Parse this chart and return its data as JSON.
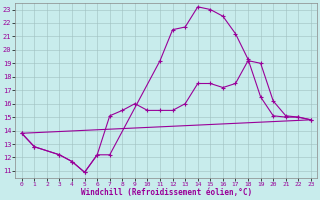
{
  "xlabel": "Windchill (Refroidissement éolien,°C)",
  "bg_color": "#c8ecec",
  "line_color": "#990099",
  "xlim": [
    -0.5,
    23.5
  ],
  "ylim": [
    10.5,
    23.5
  ],
  "xticks": [
    0,
    1,
    2,
    3,
    4,
    5,
    6,
    7,
    8,
    9,
    10,
    11,
    12,
    13,
    14,
    15,
    16,
    17,
    18,
    19,
    20,
    21,
    22,
    23
  ],
  "yticks": [
    11,
    12,
    13,
    14,
    15,
    16,
    17,
    18,
    19,
    20,
    21,
    22,
    23
  ],
  "line1_x": [
    0,
    1,
    3,
    4,
    5,
    6,
    7,
    8,
    9,
    10,
    11,
    12,
    13,
    14,
    15,
    16,
    17,
    18,
    19,
    20,
    21,
    22,
    23
  ],
  "line1_y": [
    13.8,
    12.8,
    12.2,
    11.7,
    10.9,
    12.2,
    15.1,
    15.5,
    16.0,
    15.5,
    15.5,
    15.5,
    16.0,
    17.5,
    17.5,
    17.2,
    17.5,
    19.2,
    19.0,
    16.2,
    15.1,
    15.0,
    14.8
  ],
  "line2_x": [
    0,
    1,
    3,
    4,
    5,
    6,
    7,
    11,
    12,
    13,
    14,
    15,
    16,
    17,
    18,
    19,
    20,
    21,
    22,
    23
  ],
  "line2_y": [
    13.8,
    12.8,
    12.2,
    11.7,
    10.9,
    12.2,
    12.2,
    19.2,
    21.5,
    21.7,
    23.2,
    23.0,
    22.5,
    21.2,
    19.3,
    16.5,
    15.1,
    15.0,
    15.0,
    14.8
  ],
  "line3_x": [
    0,
    23
  ],
  "line3_y": [
    13.8,
    14.8
  ]
}
